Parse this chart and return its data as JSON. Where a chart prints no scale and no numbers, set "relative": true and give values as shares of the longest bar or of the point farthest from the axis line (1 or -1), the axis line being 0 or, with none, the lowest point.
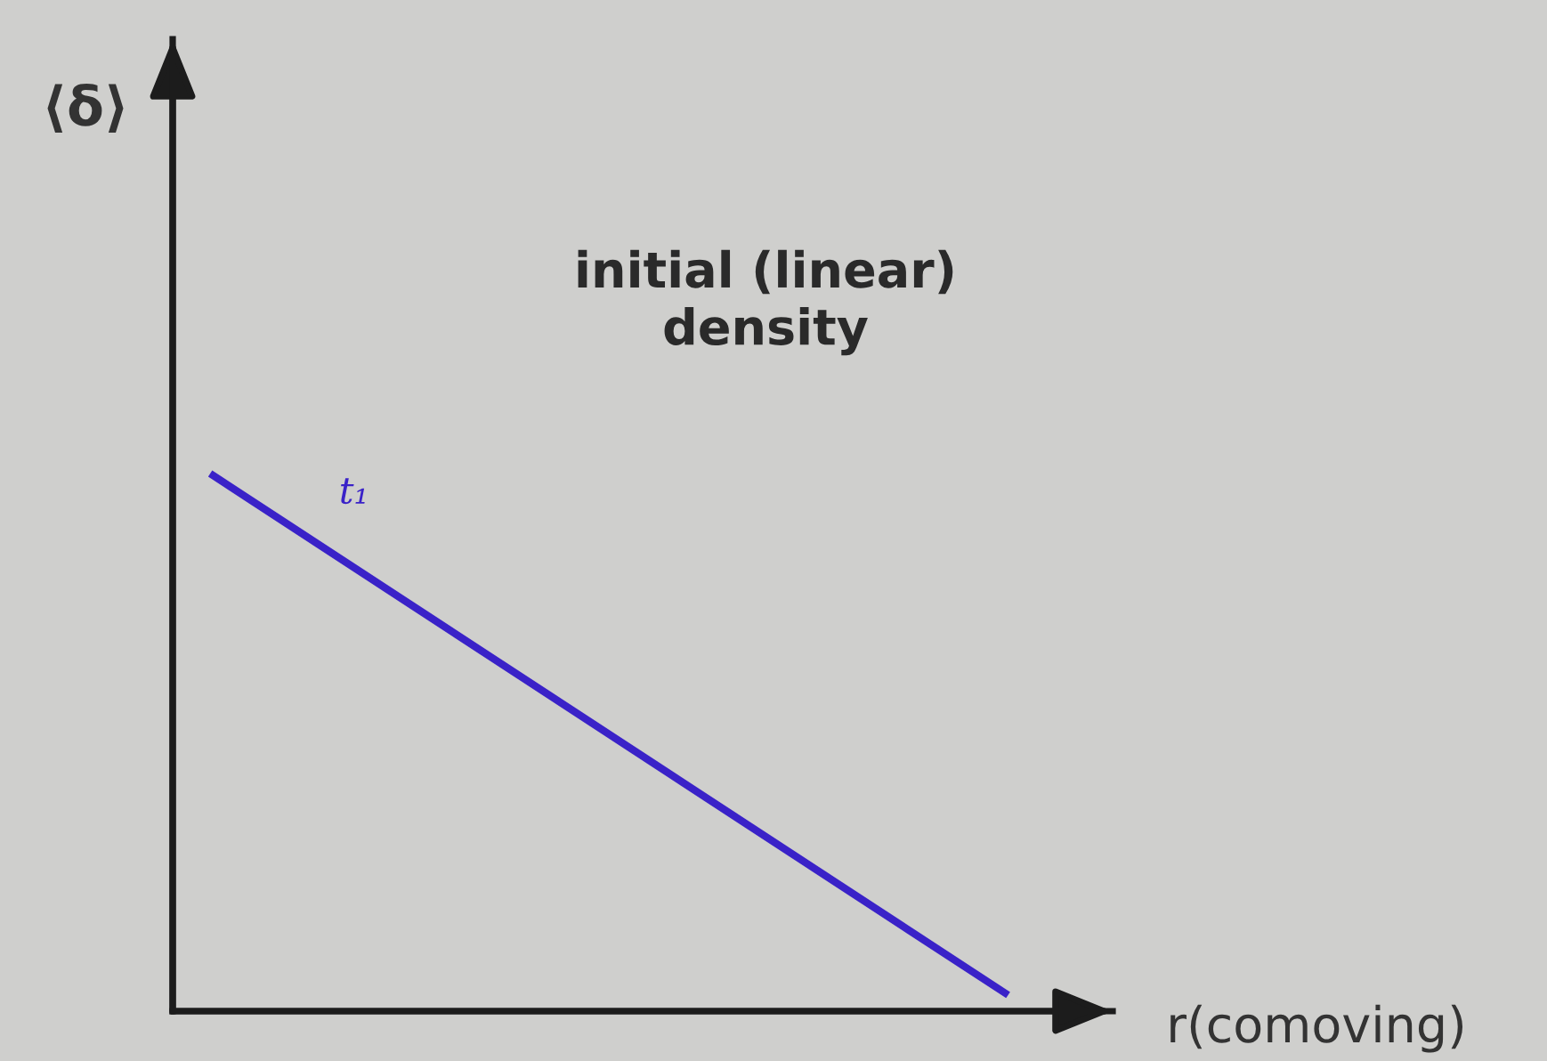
{
  "chart_data": {
    "type": "line",
    "title": "initial (linear)\ndensity",
    "xlabel": "r(comoving)",
    "annotations": [
      "⟨δ⟩"
    ],
    "categories": [
      null,
      null
    ],
    "relative": true,
    "series": [
      {
        "name": "t₁",
        "color": "#3a22c8",
        "values": [
          1,
          0.03
        ]
      }
    ],
    "tick_labels": false
  }
}
